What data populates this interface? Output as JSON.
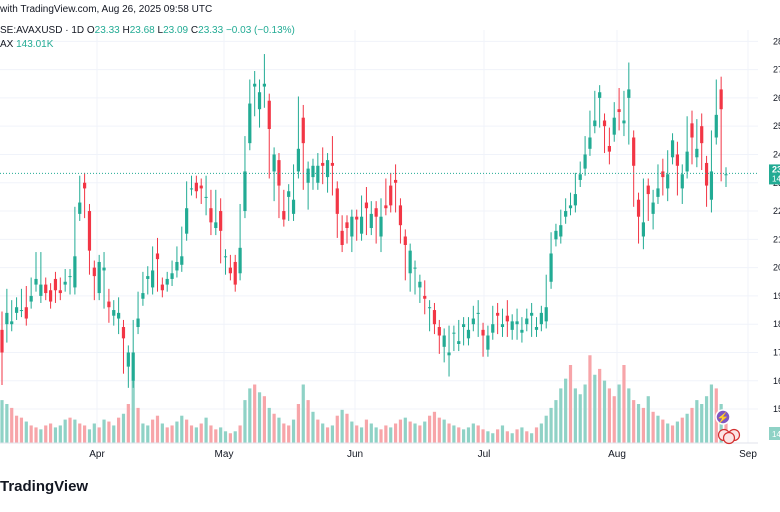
{
  "header": {
    "published": "with TradingView.com, Aug 26, 2025 09:58 UTC",
    "symbol": "SE:AVAXUSD · 1D",
    "o_label": "O",
    "o_value": "23.33",
    "h_label": "H",
    "h_value": "23.68",
    "l_label": "L",
    "l_value": "23.09",
    "c_label": "C",
    "c_value": "23.33",
    "change": "−0.03 (−0.13%)",
    "vol_label": "AX",
    "vol_value": "143.01K"
  },
  "brand": "TradingView",
  "colors": {
    "up": "#22ab94",
    "down": "#f23645",
    "vol_up": "#8fd2c6",
    "vol_down": "#f7a5a9",
    "grid": "#f0f3fa",
    "price_line": "#22ab94"
  },
  "chart_data": {
    "type": "candlestick",
    "x_labels": [
      "Apr",
      "May",
      "Jun",
      "Jul",
      "Aug",
      "Sep"
    ],
    "y_ticks": [
      "28",
      "27",
      "26",
      "25",
      "24",
      "23",
      "22",
      "21",
      "20",
      "19",
      "18",
      "17",
      "16",
      "15"
    ],
    "ylim": [
      13.8,
      28.4
    ],
    "last_price": "23",
    "last_price_sub": "14",
    "volume_tag": "14",
    "grid": true,
    "candles": [
      [
        18.2,
        17.8,
        17.0,
        16.1
      ],
      [
        17.6,
        18.0,
        18.4,
        19.0
      ],
      [
        18.5,
        18.0,
        18.1,
        18.6
      ],
      [
        18.7,
        18.4,
        18.6,
        18.5
      ],
      [
        19.0,
        18.5,
        18.5,
        18.6
      ],
      [
        19.1,
        18.6,
        18.2,
        18.8
      ],
      [
        19.1,
        18.8,
        19.0,
        19.4
      ],
      [
        19.8,
        19.4,
        19.6,
        20.3
      ],
      [
        20.0,
        19.0,
        19.4,
        20.3
      ],
      [
        19.4,
        19.4,
        19.1,
        19.2
      ],
      [
        19.0,
        19.2,
        18.8,
        19.1
      ],
      [
        19.0,
        19.6,
        19.2,
        19.1
      ],
      [
        19.4,
        19.2,
        19.1,
        19.4
      ],
      [
        19.7,
        19.4,
        19.5,
        19.7
      ],
      [
        19.5,
        19.7,
        19.7,
        19.3
      ],
      [
        20.0,
        19.3,
        20.4,
        21.9
      ],
      [
        22.7,
        21.9,
        22.3,
        23.0
      ],
      [
        23.1,
        23.0,
        22.8,
        22.0
      ],
      [
        21.2,
        22.0,
        20.6,
        20.0
      ],
      [
        19.8,
        20.0,
        19.7,
        19.1
      ],
      [
        19.5,
        19.1,
        20.2,
        19.9
      ],
      [
        20.3,
        19.9,
        20.0,
        18.8
      ],
      [
        19.0,
        18.8,
        18.6,
        18.3
      ],
      [
        18.6,
        18.3,
        18.5,
        18.2
      ],
      [
        18.7,
        18.2,
        18.4,
        17.9
      ],
      [
        17.9,
        17.9,
        17.5,
        16.5
      ],
      [
        16.2,
        16.5,
        17.0,
        16.0
      ],
      [
        16.4,
        16.0,
        17.0,
        17.9
      ],
      [
        17.9,
        17.9,
        18.2,
        18.9
      ],
      [
        19.4,
        18.9,
        19.1,
        19.6
      ],
      [
        19.8,
        19.6,
        19.7,
        19.3
      ],
      [
        19.5,
        19.3,
        19.9,
        20.5
      ],
      [
        20.8,
        20.5,
        20.3,
        19.4
      ],
      [
        19.3,
        19.4,
        19.2,
        19.4
      ],
      [
        19.6,
        19.4,
        19.6,
        19.6
      ],
      [
        20.0,
        19.6,
        19.8,
        19.9
      ],
      [
        20.5,
        19.9,
        20.2,
        20.1
      ],
      [
        20.8,
        20.1,
        20.4,
        21.2
      ],
      [
        22.5,
        21.2,
        22.1,
        22.8
      ],
      [
        23.0,
        22.8,
        22.8,
        23.0
      ],
      [
        22.9,
        23.0,
        22.7,
        22.9
      ],
      [
        22.6,
        22.9,
        22.8,
        22.5
      ],
      [
        23.0,
        22.5,
        22.5,
        22.1
      ],
      [
        22.5,
        22.1,
        21.6,
        21.4
      ],
      [
        22.5,
        21.4,
        21.6,
        22.0
      ],
      [
        22.2,
        22.0,
        21.3,
        20.4
      ],
      [
        20.2,
        20.4,
        20.4,
        20.0
      ],
      [
        20.1,
        20.0,
        19.8,
        20.2
      ],
      [
        20.0,
        20.2,
        19.4,
        19.8
      ],
      [
        20.3,
        19.8,
        20.7,
        22.0
      ],
      [
        22.1,
        22.0,
        23.4,
        24.4
      ],
      [
        26.0,
        24.4,
        25.8,
        26.4
      ],
      [
        26.7,
        26.4,
        26.5,
        25.6
      ],
      [
        25.2,
        25.6,
        26.2,
        26.4
      ],
      [
        27.3,
        26.4,
        26.5,
        25.9
      ],
      [
        25.1,
        25.9,
        24.9,
        23.4
      ],
      [
        22.6,
        23.4,
        24.0,
        23.8
      ],
      [
        23.5,
        23.8,
        22.9,
        22.0
      ],
      [
        22.2,
        22.0,
        21.7,
        22.5
      ],
      [
        22.3,
        22.5,
        22.7,
        21.9
      ],
      [
        22.6,
        21.9,
        22.4,
        23.4
      ],
      [
        25.8,
        23.4,
        24.2,
        25.3
      ],
      [
        25.5,
        25.3,
        24.4,
        23.0
      ],
      [
        22.3,
        23.0,
        23.5,
        23.2
      ],
      [
        23.1,
        23.2,
        23.6,
        23.0
      ],
      [
        23.8,
        23.0,
        23.6,
        23.7
      ],
      [
        24.0,
        23.7,
        23.6,
        23.2
      ],
      [
        22.9,
        23.2,
        23.8,
        23.7
      ],
      [
        24.4,
        23.7,
        23.6,
        22.8
      ],
      [
        22.6,
        22.8,
        21.9,
        21.3
      ],
      [
        21.0,
        21.3,
        20.8,
        21.6
      ],
      [
        21.6,
        21.6,
        21.4,
        21.1
      ],
      [
        20.8,
        21.1,
        21.8,
        21.8
      ],
      [
        21.8,
        21.8,
        21.7,
        21.2
      ],
      [
        21.3,
        21.2,
        21.8,
        22.3
      ],
      [
        22.6,
        22.3,
        22.1,
        21.4
      ],
      [
        21.5,
        21.4,
        21.9,
        22.1
      ],
      [
        21.7,
        22.1,
        21.8,
        21.1
      ],
      [
        20.8,
        21.1,
        21.8,
        22.2
      ],
      [
        22.3,
        22.2,
        22.1,
        22.9
      ],
      [
        22.8,
        22.9,
        22.2,
        23.1
      ],
      [
        23.4,
        23.1,
        23.0,
        22.2
      ],
      [
        21.8,
        22.2,
        21.5,
        21.1
      ],
      [
        20.8,
        21.1,
        20.8,
        19.8
      ],
      [
        19.4,
        19.8,
        20.6,
        20.0
      ],
      [
        19.7,
        20.0,
        20.0,
        19.3
      ],
      [
        19.0,
        19.3,
        19.5,
        19.0
      ],
      [
        19.3,
        19.0,
        18.9,
        18.6
      ],
      [
        18.0,
        18.6,
        18.6,
        18.5
      ],
      [
        18.4,
        18.5,
        18.0,
        17.9
      ],
      [
        17.9,
        17.9,
        17.6,
        17.2
      ],
      [
        17.0,
        17.2,
        17.6,
        16.9
      ],
      [
        16.4,
        16.9,
        17.0,
        17.7
      ],
      [
        17.7,
        17.7,
        17.7,
        17.3
      ],
      [
        17.8,
        17.3,
        17.4,
        17.9
      ],
      [
        18.0,
        17.9,
        18.0,
        17.5
      ],
      [
        17.6,
        17.5,
        17.8,
        18.0
      ],
      [
        18.2,
        18.0,
        18.2,
        18.4
      ],
      [
        18.6,
        18.4,
        18.4,
        17.8
      ],
      [
        17.7,
        17.8,
        17.6,
        17.1
      ],
      [
        17.1,
        17.1,
        17.6,
        17.7
      ],
      [
        17.7,
        17.7,
        18.0,
        18.4
      ],
      [
        18.5,
        18.4,
        18.3,
        17.9
      ],
      [
        17.8,
        17.9,
        18.0,
        18.3
      ],
      [
        18.6,
        18.3,
        18.1,
        17.8
      ],
      [
        17.7,
        17.8,
        18.1,
        18.0
      ],
      [
        18.3,
        18.0,
        18.1,
        17.7
      ],
      [
        17.6,
        17.7,
        17.8,
        18.0
      ],
      [
        18.2,
        18.0,
        18.2,
        18.3
      ],
      [
        18.5,
        18.3,
        18.4,
        17.8
      ],
      [
        17.8,
        17.8,
        17.9,
        18.0
      ],
      [
        18.1,
        18.0,
        18.4,
        18.1
      ],
      [
        18.3,
        18.1,
        18.6,
        19.5
      ],
      [
        19.6,
        19.5,
        20.5,
        21.0
      ],
      [
        21.2,
        21.0,
        21.3,
        21.1
      ],
      [
        21.2,
        21.1,
        21.5,
        21.8
      ],
      [
        22.2,
        21.8,
        22.0,
        22.1
      ],
      [
        22.4,
        22.1,
        22.2,
        22.2
      ],
      [
        22.6,
        22.2,
        22.6,
        23.1
      ],
      [
        23.2,
        23.1,
        23.3,
        23.5
      ],
      [
        24.4,
        23.5,
        24.0,
        24.2
      ],
      [
        25.3,
        24.2,
        24.6,
        25.0
      ],
      [
        25.4,
        25.0,
        25.2,
        26.0
      ],
      [
        26.0,
        26.0,
        26.2,
        25.2
      ],
      [
        24.8,
        25.2,
        25.0,
        24.3
      ],
      [
        23.9,
        24.3,
        24.1,
        24.7
      ],
      [
        25.3,
        24.7,
        25.3,
        25.6
      ],
      [
        26.1,
        25.6,
        25.5,
        25.1
      ],
      [
        24.9,
        25.1,
        25.2,
        26.0
      ],
      [
        27.0,
        26.0,
        26.3,
        24.6
      ],
      [
        24.4,
        24.6,
        23.6,
        22.4
      ],
      [
        22.0,
        22.4,
        21.8,
        21.1
      ],
      [
        20.9,
        21.1,
        21.6,
        22.9
      ],
      [
        22.9,
        22.9,
        22.6,
        21.9
      ],
      [
        21.6,
        21.9,
        22.3,
        22.5
      ],
      [
        22.5,
        22.5,
        22.8,
        23.4
      ],
      [
        23.6,
        23.4,
        23.2,
        22.8
      ],
      [
        22.6,
        22.8,
        23.3,
        23.9
      ],
      [
        24.0,
        23.9,
        24.5,
        24.0
      ],
      [
        24.2,
        24.0,
        23.6,
        22.8
      ],
      [
        22.5,
        22.8,
        23.3,
        23.4
      ],
      [
        23.6,
        23.4,
        24.1,
        25.1
      ],
      [
        25.3,
        25.1,
        24.6,
        23.9
      ],
      [
        23.8,
        23.9,
        24.2,
        25.0
      ],
      [
        25.2,
        25.0,
        24.4,
        23.7
      ],
      [
        23.4,
        23.7,
        22.9,
        22.4
      ],
      [
        22.2,
        22.4,
        23.4,
        24.6
      ],
      [
        26.4,
        24.6,
        25.4,
        26.3
      ],
      [
        26.5,
        26.3,
        25.6,
        23.3
      ],
      [
        23.2,
        23.3,
        23.3,
        23.1
      ]
    ],
    "volumes": [
      [
        22,
        1
      ],
      [
        20,
        1
      ],
      [
        18,
        0
      ],
      [
        14,
        0
      ],
      [
        13,
        0
      ],
      [
        11,
        1
      ],
      [
        9,
        0
      ],
      [
        8,
        0
      ],
      [
        7,
        1
      ],
      [
        9,
        0
      ],
      [
        10,
        0
      ],
      [
        8,
        1
      ],
      [
        9,
        1
      ],
      [
        12,
        1
      ],
      [
        13,
        0
      ],
      [
        12,
        1
      ],
      [
        10,
        0
      ],
      [
        9,
        0
      ],
      [
        7,
        1
      ],
      [
        10,
        1
      ],
      [
        8,
        0
      ],
      [
        12,
        1
      ],
      [
        11,
        0
      ],
      [
        9,
        1
      ],
      [
        13,
        0
      ],
      [
        15,
        1
      ],
      [
        20,
        0
      ],
      [
        32,
        1
      ],
      [
        18,
        0
      ],
      [
        10,
        1
      ],
      [
        9,
        1
      ],
      [
        12,
        0
      ],
      [
        14,
        0
      ],
      [
        10,
        1
      ],
      [
        8,
        0
      ],
      [
        9,
        0
      ],
      [
        11,
        1
      ],
      [
        14,
        1
      ],
      [
        12,
        0
      ],
      [
        9,
        0
      ],
      [
        8,
        1
      ],
      [
        10,
        0
      ],
      [
        13,
        1
      ],
      [
        9,
        0
      ],
      [
        7,
        0
      ],
      [
        8,
        1
      ],
      [
        6,
        1
      ],
      [
        5,
        0
      ],
      [
        6,
        1
      ],
      [
        9,
        0
      ],
      [
        22,
        1
      ],
      [
        28,
        1
      ],
      [
        30,
        0
      ],
      [
        26,
        1
      ],
      [
        24,
        0
      ],
      [
        18,
        1
      ],
      [
        15,
        0
      ],
      [
        13,
        1
      ],
      [
        10,
        0
      ],
      [
        9,
        0
      ],
      [
        12,
        1
      ],
      [
        20,
        0
      ],
      [
        30,
        1
      ],
      [
        22,
        0
      ],
      [
        16,
        1
      ],
      [
        12,
        0
      ],
      [
        10,
        1
      ],
      [
        8,
        0
      ],
      [
        9,
        1
      ],
      [
        14,
        0
      ],
      [
        17,
        1
      ],
      [
        15,
        0
      ],
      [
        11,
        1
      ],
      [
        9,
        0
      ],
      [
        8,
        1
      ],
      [
        12,
        0
      ],
      [
        10,
        1
      ],
      [
        8,
        1
      ],
      [
        7,
        0
      ],
      [
        9,
        0
      ],
      [
        8,
        1
      ],
      [
        10,
        0
      ],
      [
        12,
        0
      ],
      [
        13,
        1
      ],
      [
        11,
        0
      ],
      [
        10,
        1
      ],
      [
        9,
        0
      ],
      [
        11,
        1
      ],
      [
        14,
        0
      ],
      [
        16,
        0
      ],
      [
        13,
        0
      ],
      [
        12,
        1
      ],
      [
        10,
        0
      ],
      [
        9,
        1
      ],
      [
        8,
        0
      ],
      [
        7,
        1
      ],
      [
        8,
        1
      ],
      [
        10,
        1
      ],
      [
        9,
        0
      ],
      [
        7,
        0
      ],
      [
        6,
        1
      ],
      [
        5,
        1
      ],
      [
        7,
        0
      ],
      [
        9,
        1
      ],
      [
        6,
        0
      ],
      [
        5,
        1
      ],
      [
        7,
        0
      ],
      [
        8,
        1
      ],
      [
        6,
        0
      ],
      [
        5,
        1
      ],
      [
        8,
        0
      ],
      [
        10,
        1
      ],
      [
        14,
        1
      ],
      [
        18,
        1
      ],
      [
        22,
        1
      ],
      [
        28,
        1
      ],
      [
        33,
        1
      ],
      [
        40,
        0
      ],
      [
        28,
        1
      ],
      [
        25,
        1
      ],
      [
        30,
        1
      ],
      [
        45,
        0
      ],
      [
        35,
        1
      ],
      [
        38,
        0
      ],
      [
        32,
        1
      ],
      [
        28,
        0
      ],
      [
        24,
        0
      ],
      [
        30,
        1
      ],
      [
        40,
        0
      ],
      [
        28,
        1
      ],
      [
        22,
        0
      ],
      [
        20,
        1
      ],
      [
        18,
        0
      ],
      [
        24,
        1
      ],
      [
        16,
        0
      ],
      [
        14,
        1
      ],
      [
        12,
        0
      ],
      [
        10,
        1
      ],
      [
        9,
        0
      ],
      [
        11,
        1
      ],
      [
        13,
        0
      ],
      [
        15,
        1
      ],
      [
        18,
        0
      ],
      [
        22,
        1
      ],
      [
        20,
        1
      ],
      [
        24,
        1
      ],
      [
        30,
        1
      ],
      [
        28,
        0
      ],
      [
        20,
        1
      ],
      [
        14,
        0
      ]
    ]
  }
}
